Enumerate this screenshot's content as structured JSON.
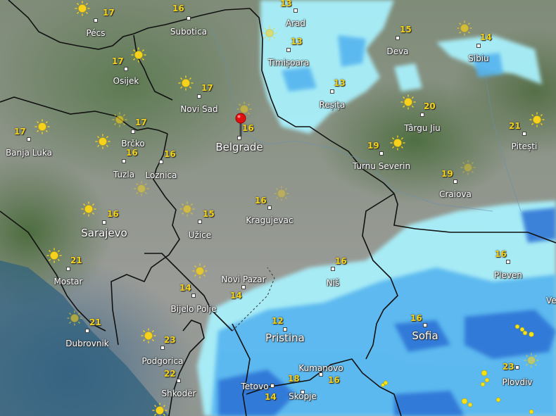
{
  "map": {
    "type": "weather-radar-map",
    "selected_location": "Belgrade",
    "colors": {
      "light_rain": "#a8f0fb",
      "moderate_rain": "#55b4ef",
      "heavy_rain": "#2a6fd4",
      "lightning": "#f4e21a",
      "temperature": "#f2d21a",
      "border": "#111111"
    },
    "cities": [
      {
        "name": "Pécs",
        "temp": "17"
      },
      {
        "name": "Subotica",
        "temp": "16"
      },
      {
        "name": "Arad",
        "temp": "13"
      },
      {
        "name": "Deva",
        "temp": "15"
      },
      {
        "name": "Sibiu",
        "temp": "14"
      },
      {
        "name": "Timișoara",
        "temp": "13"
      },
      {
        "name": "Osijek",
        "temp": "17"
      },
      {
        "name": "Novi Sad",
        "temp": "17"
      },
      {
        "name": "Reșița",
        "temp": "13"
      },
      {
        "name": "Târgu Jiu",
        "temp": "20"
      },
      {
        "name": "Pitești",
        "temp": "21"
      },
      {
        "name": "Belgrade",
        "temp": "16"
      },
      {
        "name": "Brčko",
        "temp": "17"
      },
      {
        "name": "Banja Luka",
        "temp": "17"
      },
      {
        "name": "Tuzla",
        "temp": "16"
      },
      {
        "name": "Loznica",
        "temp": "16"
      },
      {
        "name": "Turnu Severin",
        "temp": "19"
      },
      {
        "name": "Craiova",
        "temp": "19"
      },
      {
        "name": "Kragujevac",
        "temp": "16"
      },
      {
        "name": "Sarajevo",
        "temp": "16"
      },
      {
        "name": "Užice",
        "temp": "15"
      },
      {
        "name": "Mostar",
        "temp": "21"
      },
      {
        "name": "Pleven",
        "temp": "16"
      },
      {
        "name": "Novi Pazar",
        "temp": "14"
      },
      {
        "name": "Niš",
        "temp": "16"
      },
      {
        "name": "Bijelo Polje",
        "temp": "14"
      },
      {
        "name": "Dubrovnik",
        "temp": "21"
      },
      {
        "name": "Pristina",
        "temp": "12"
      },
      {
        "name": "Sofia",
        "temp": "16"
      },
      {
        "name": "Podgorica",
        "temp": "23"
      },
      {
        "name": "Shkodër",
        "temp": "22"
      },
      {
        "name": "Kumanovo",
        "temp": "16"
      },
      {
        "name": "Tetovo",
        "temp": "14"
      },
      {
        "name": "Skopje",
        "temp": "18"
      },
      {
        "name": "Plovdiv",
        "temp": "23"
      },
      {
        "name": "Veli",
        "temp": ""
      }
    ],
    "weather_icon": "sun-icon"
  }
}
